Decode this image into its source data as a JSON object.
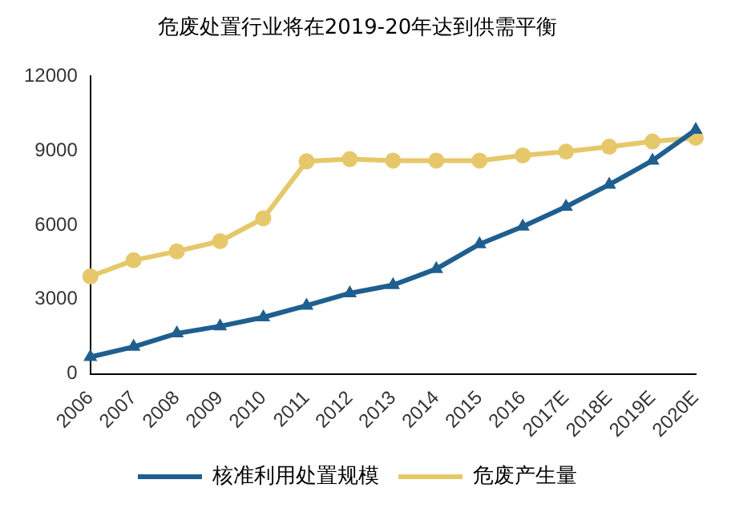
{
  "chart_data": {
    "type": "line",
    "title": "危废处置行业将在2019-20年达到供需平衡",
    "categories": [
      "2006",
      "2007",
      "2008",
      "2009",
      "2010",
      "2011",
      "2012",
      "2013",
      "2014",
      "2015",
      "2016",
      "2017E",
      "2018E",
      "2019E",
      "2020E"
    ],
    "series": [
      {
        "name": "核准利用处置规模",
        "color": "#1f5f8f",
        "marker": "triangle",
        "values": [
          680,
          1090,
          1630,
          1920,
          2280,
          2750,
          3250,
          3580,
          4230,
          5230,
          5940,
          6740,
          7630,
          8600,
          9840
        ]
      },
      {
        "name": "危废产生量",
        "color": "#e6c86a",
        "marker": "circle",
        "values": [
          3930,
          4580,
          4940,
          5350,
          6270,
          8570,
          8660,
          8600,
          8600,
          8600,
          8810,
          8960,
          9160,
          9370,
          9520
        ]
      }
    ],
    "ylim": [
      0,
      12000
    ],
    "yticks": [
      0,
      3000,
      6000,
      9000,
      12000
    ],
    "grid": false,
    "legend": "bottom",
    "line_style": "solid"
  }
}
